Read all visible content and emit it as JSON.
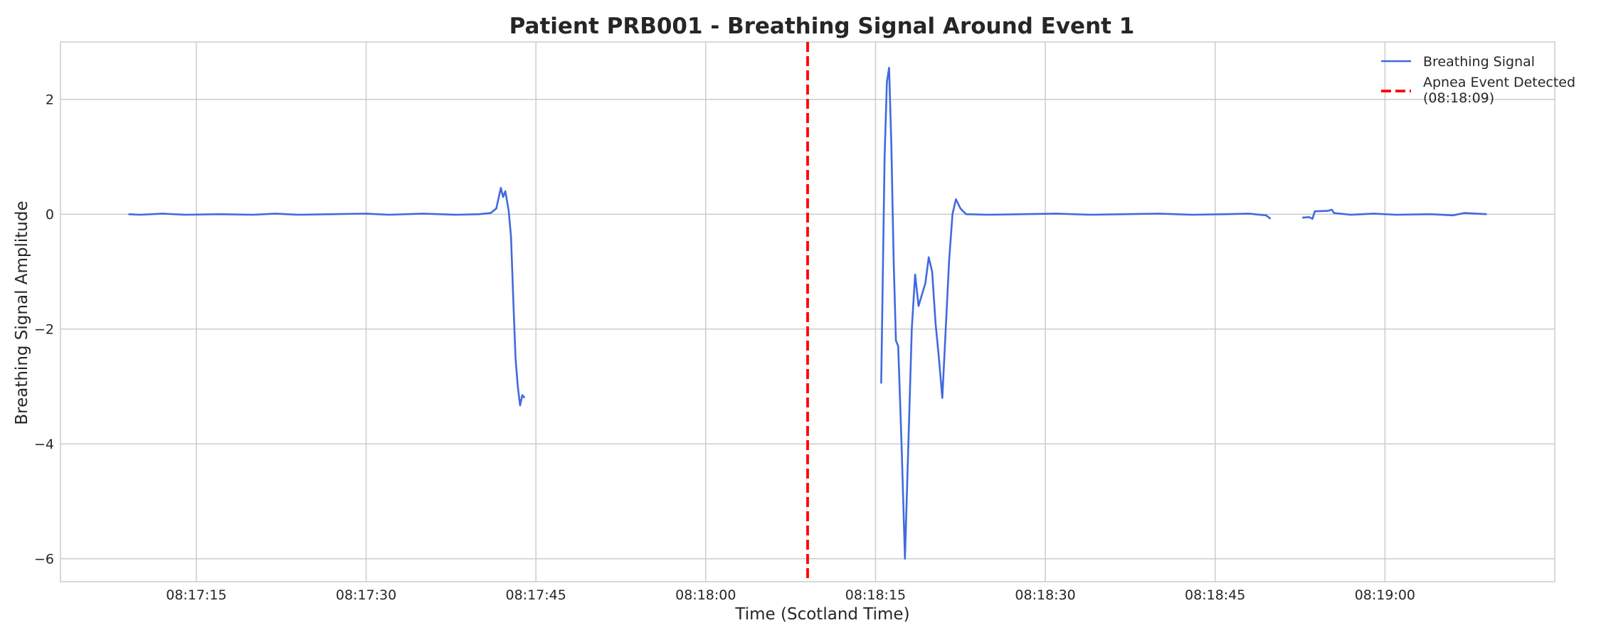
{
  "chart_data": {
    "type": "line",
    "title": "Patient PRB001 - Breathing Signal Around Event 1",
    "xlabel": "Time (Scotland Time)",
    "ylabel": "Breathing Signal Amplitude",
    "x_unit": "time of day (HH:MM:SS)",
    "xlim": [
      "08:17:03",
      "08:19:15"
    ],
    "ylim": [
      -6.4,
      3.0
    ],
    "x_ticks": [
      "08:17:15",
      "08:17:30",
      "08:17:45",
      "08:18:00",
      "08:18:15",
      "08:18:30",
      "08:18:45",
      "08:19:00"
    ],
    "y_ticks": [
      2,
      0,
      -2,
      -4,
      -6
    ],
    "y_tick_labels": [
      "2",
      "0",
      "−2",
      "−4",
      "−6"
    ],
    "grid": true,
    "legend": "top-right",
    "colors": {
      "signal": "#4169e1",
      "event": "#ff0000",
      "grid": "#cccccc",
      "spine": "#cccccc"
    },
    "series": [
      {
        "name": "Breathing Signal",
        "style": "solid",
        "segments": [
          [
            [
              "08:17:09",
              0.0
            ],
            [
              "08:17:10",
              -0.01
            ],
            [
              "08:17:12",
              0.01
            ],
            [
              "08:17:14",
              -0.01
            ],
            [
              "08:17:17",
              0.0
            ],
            [
              "08:17:20",
              -0.01
            ],
            [
              "08:17:22",
              0.01
            ],
            [
              "08:17:24",
              -0.01
            ],
            [
              "08:17:27",
              0.0
            ],
            [
              "08:17:30",
              0.01
            ],
            [
              "08:17:32",
              -0.01
            ],
            [
              "08:17:35",
              0.01
            ],
            [
              "08:17:38",
              -0.01
            ],
            [
              "08:17:40",
              0.0
            ],
            [
              "08:17:41",
              0.02
            ],
            [
              "08:17:41.5",
              0.1
            ],
            [
              "08:17:41.9",
              0.46
            ],
            [
              "08:17:42.1",
              0.3
            ],
            [
              "08:17:42.3",
              0.4
            ],
            [
              "08:17:42.6",
              0.05
            ],
            [
              "08:17:42.8",
              -0.4
            ],
            [
              "08:17:43",
              -1.5
            ],
            [
              "08:17:43.2",
              -2.5
            ],
            [
              "08:17:43.4",
              -3.0
            ],
            [
              "08:17:43.6",
              -3.33
            ],
            [
              "08:17:43.8",
              -3.15
            ],
            [
              "08:17:44",
              -3.2
            ]
          ],
          [
            [
              "08:18:15.5",
              -2.95
            ],
            [
              "08:18:15.8",
              1.0
            ],
            [
              "08:18:16",
              2.3
            ],
            [
              "08:18:16.2",
              2.55
            ],
            [
              "08:18:16.4",
              1.2
            ],
            [
              "08:18:16.6",
              -0.8
            ],
            [
              "08:18:16.8",
              -2.2
            ],
            [
              "08:18:17",
              -2.3
            ],
            [
              "08:18:17.3",
              -4.0
            ],
            [
              "08:18:17.6",
              -6.0
            ],
            [
              "08:18:17.9",
              -4.0
            ],
            [
              "08:18:18.2",
              -2.0
            ],
            [
              "08:18:18.5",
              -1.05
            ],
            [
              "08:18:18.8",
              -1.6
            ],
            [
              "08:18:19.1",
              -1.4
            ],
            [
              "08:18:19.4",
              -1.2
            ],
            [
              "08:18:19.7",
              -0.75
            ],
            [
              "08:18:20",
              -1.0
            ],
            [
              "08:18:20.3",
              -1.9
            ],
            [
              "08:18:20.6",
              -2.5
            ],
            [
              "08:18:20.9",
              -3.2
            ],
            [
              "08:18:21.2",
              -2.0
            ],
            [
              "08:18:21.5",
              -0.8
            ],
            [
              "08:18:21.8",
              0.0
            ],
            [
              "08:18:22.1",
              0.26
            ],
            [
              "08:18:22.5",
              0.1
            ],
            [
              "08:18:23",
              0.0
            ],
            [
              "08:18:25",
              -0.01
            ],
            [
              "08:18:28",
              0.0
            ],
            [
              "08:18:31",
              0.01
            ],
            [
              "08:18:34",
              -0.01
            ],
            [
              "08:18:37",
              0.0
            ],
            [
              "08:18:40",
              0.01
            ],
            [
              "08:18:43",
              -0.01
            ],
            [
              "08:18:46",
              0.0
            ],
            [
              "08:18:48",
              0.01
            ],
            [
              "08:18:49.5",
              -0.02
            ],
            [
              "08:18:49.9",
              -0.08
            ]
          ],
          [
            [
              "08:18:52.7",
              -0.06
            ],
            [
              "08:18:53.3",
              -0.05
            ],
            [
              "08:18:53.6",
              -0.08
            ],
            [
              "08:18:53.8",
              0.05
            ],
            [
              "08:18:55",
              0.06
            ],
            [
              "08:18:55.3",
              0.08
            ],
            [
              "08:18:55.5",
              0.02
            ],
            [
              "08:18:57",
              -0.01
            ],
            [
              "08:18:59",
              0.01
            ],
            [
              "08:19:01",
              -0.01
            ],
            [
              "08:19:04",
              0.0
            ],
            [
              "08:19:06",
              -0.02
            ],
            [
              "08:19:07",
              0.02
            ],
            [
              "08:19:09",
              0.0
            ]
          ]
        ]
      },
      {
        "name": "Apnea Event Detected\n(08:18:09)",
        "style": "dashed",
        "x": "08:18:09"
      }
    ]
  }
}
